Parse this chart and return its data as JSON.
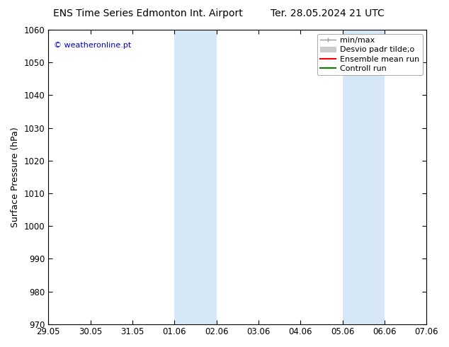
{
  "title_left": "ENS Time Series Edmonton Int. Airport",
  "title_right": "Ter. 28.05.2024 21 UTC",
  "ylabel": "Surface Pressure (hPa)",
  "ylim": [
    970,
    1060
  ],
  "yticks": [
    970,
    980,
    990,
    1000,
    1010,
    1020,
    1030,
    1040,
    1050,
    1060
  ],
  "xtick_labels": [
    "29.05",
    "30.05",
    "31.05",
    "01.06",
    "02.06",
    "03.06",
    "04.06",
    "05.06",
    "06.06",
    "07.06"
  ],
  "xtick_positions": [
    0,
    1,
    2,
    3,
    4,
    5,
    6,
    7,
    8,
    9
  ],
  "shaded_regions": [
    {
      "xmin": 3,
      "xmax": 4
    },
    {
      "xmin": 7,
      "xmax": 8
    }
  ],
  "shade_color": "#d6e8f7",
  "watermark_text": "© weatheronline.pt",
  "watermark_color": "#0000cc",
  "background_color": "#ffffff",
  "title_fontsize": 10,
  "axis_label_fontsize": 9,
  "tick_fontsize": 8.5,
  "legend_fontsize": 8
}
